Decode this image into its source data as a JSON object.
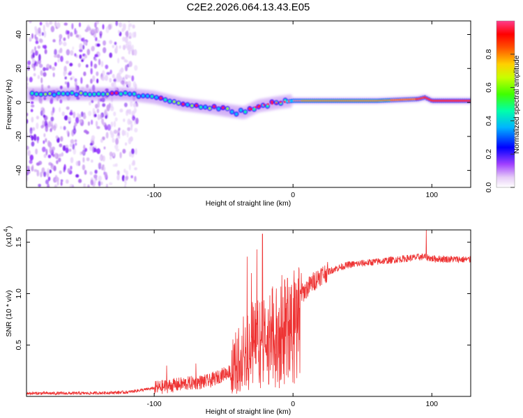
{
  "figure": {
    "title": "C2E2.2026.064.13.43.E05"
  },
  "chart_data": [
    {
      "type": "heatmap",
      "xlabel": "Height of straight line (km)",
      "ylabel": "Frequency (Hz)",
      "xlim": [
        -192,
        128
      ],
      "ylim": [
        -50,
        48
      ],
      "xticks": [
        -100,
        0,
        100
      ],
      "yticks": [
        -40,
        -20,
        0,
        20,
        40
      ],
      "colorbar": {
        "label": "Normalized spectral amplitude",
        "range": [
          0,
          1
        ],
        "ticks": [
          "0.0",
          "0.2",
          "0.4",
          "0.6",
          "0.8"
        ],
        "colors": [
          "#ffffff",
          "#e3c8f7",
          "#9b30ff",
          "#0000ff",
          "#00c8ff",
          "#00ff80",
          "#80ff00",
          "#ffff00",
          "#ff8000",
          "#ff0000",
          "#ff3c8c"
        ]
      },
      "ridge": {
        "description_points_km_hz": [
          [
            -190,
            5
          ],
          [
            -150,
            5
          ],
          [
            -120,
            5
          ],
          [
            -100,
            3
          ],
          [
            -80,
            -1
          ],
          [
            -60,
            -3
          ],
          [
            -45,
            -5
          ],
          [
            -35,
            -6
          ],
          [
            -25,
            -2
          ],
          [
            -10,
            0
          ],
          [
            0,
            1
          ],
          [
            20,
            1
          ],
          [
            60,
            1
          ],
          [
            90,
            2
          ],
          [
            95,
            3
          ],
          [
            100,
            1
          ],
          [
            128,
            1
          ]
        ],
        "noise_region_km": [
          -192,
          -112
        ]
      }
    },
    {
      "type": "line",
      "xlabel": "Height of straight line (km)",
      "ylabel": "SNR (10 * v/v)",
      "yscale_label": "(x10",
      "yscale_exp": "4",
      "xlim": [
        -192,
        128
      ],
      "ylim": [
        0,
        1.62
      ],
      "xticks": [
        -100,
        0,
        100
      ],
      "yticks": [
        0.5,
        1.0,
        1.5
      ],
      "ytick_labels": [
        "0.5",
        "1.0",
        "1.5"
      ],
      "color": "#ee3333",
      "series": [
        {
          "name": "SNR",
          "envelope_km_value": [
            [
              -192,
              0.03
            ],
            [
              -150,
              0.03
            ],
            [
              -120,
              0.04
            ],
            [
              -100,
              0.08
            ],
            [
              -80,
              0.12
            ],
            [
              -60,
              0.15
            ],
            [
              -45,
              0.25
            ],
            [
              -40,
              0.35
            ],
            [
              -35,
              0.55
            ],
            [
              -30,
              0.6
            ],
            [
              -25,
              0.65
            ],
            [
              -20,
              0.7
            ],
            [
              -15,
              0.75
            ],
            [
              -10,
              0.8
            ],
            [
              -5,
              0.85
            ],
            [
              0,
              0.9
            ],
            [
              5,
              0.98
            ],
            [
              10,
              1.05
            ],
            [
              15,
              1.12
            ],
            [
              20,
              1.18
            ],
            [
              30,
              1.24
            ],
            [
              40,
              1.28
            ],
            [
              60,
              1.31
            ],
            [
              80,
              1.34
            ],
            [
              95,
              1.36
            ],
            [
              100,
              1.34
            ],
            [
              128,
              1.33
            ]
          ],
          "spikes_km_value": [
            [
              -91,
              0.3
            ],
            [
              -70,
              0.32
            ],
            [
              -44,
              0.45
            ],
            [
              -33,
              1.36
            ],
            [
              -30,
              1.2
            ],
            [
              -26,
              1.43
            ],
            [
              -22,
              1.58
            ],
            [
              -18,
              0.8
            ],
            [
              -12,
              1.05
            ],
            [
              -8,
              1.18
            ],
            [
              -4,
              1.15
            ],
            [
              2,
              1.1
            ],
            [
              6,
              1.2
            ],
            [
              96,
              1.62
            ]
          ]
        }
      ]
    }
  ]
}
